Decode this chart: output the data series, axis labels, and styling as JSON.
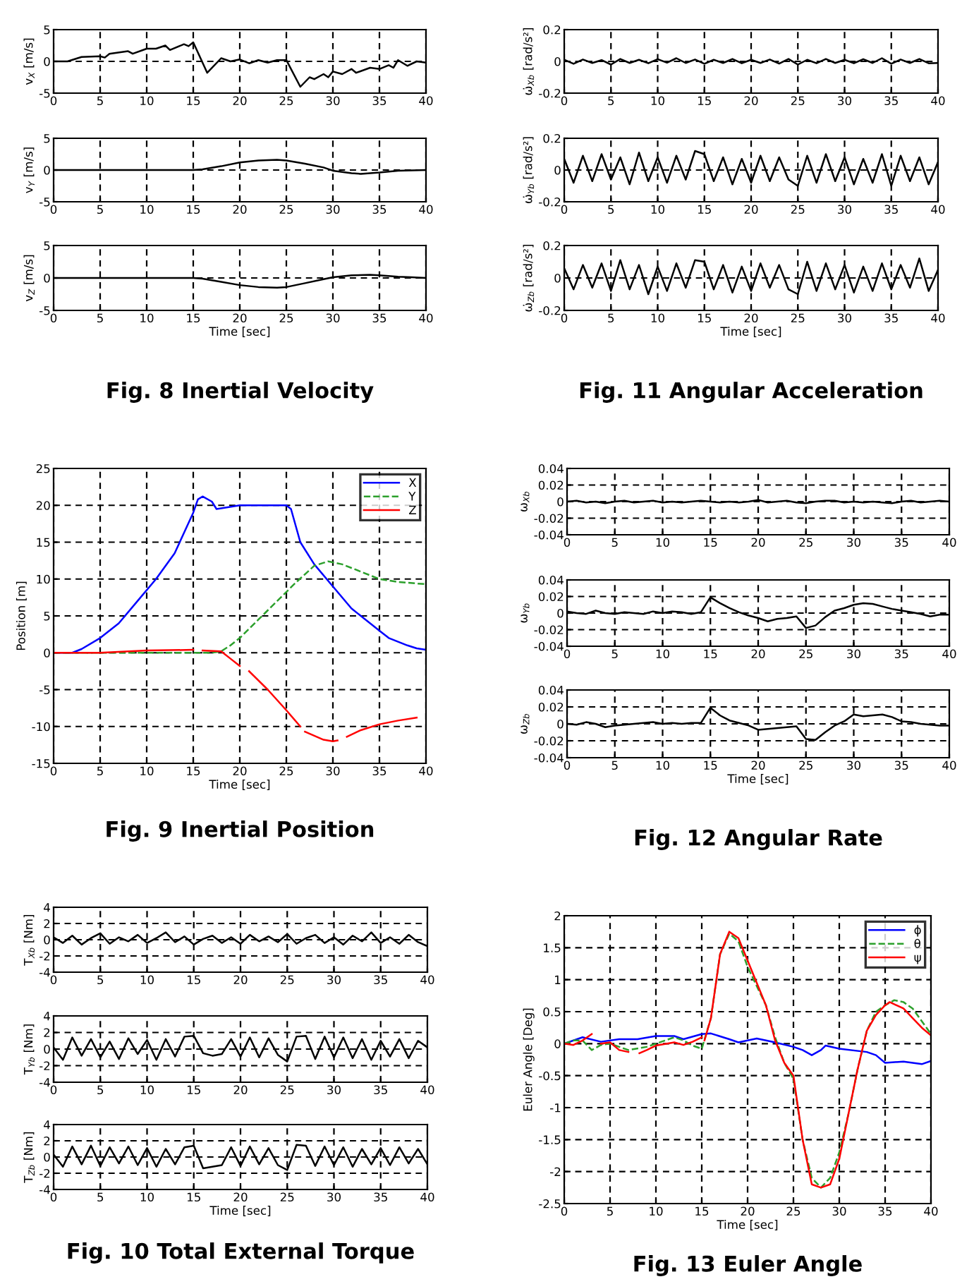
{
  "chart_data": [
    {
      "type": "line",
      "ylabel": "v$_{X}$ [m/s]",
      "xlim": [
        0,
        40
      ],
      "xticks": [
        0,
        5,
        10,
        15,
        20,
        25,
        30,
        35,
        40
      ],
      "ylim": [
        -5,
        5
      ],
      "yticks": [
        -5,
        0,
        5
      ],
      "grid": true,
      "series": [
        {
          "color": "#000000",
          "line_style": "solid",
          "x": [
            0,
            1.5,
            3,
            5,
            5.5,
            6,
            8,
            8.5,
            10,
            11,
            12,
            12.5,
            14,
            14.5,
            15,
            16.5,
            18,
            19,
            20,
            21,
            22,
            23,
            24,
            25,
            26.5,
            27.5,
            28,
            29,
            29.5,
            30,
            31,
            32,
            32.5,
            34,
            35,
            36,
            36.5,
            37,
            38,
            39,
            40
          ],
          "values": [
            0,
            0,
            0.7,
            0.8,
            0.6,
            1.2,
            1.6,
            1.2,
            2,
            2,
            2.5,
            1.8,
            2.7,
            2.4,
            3,
            -1.8,
            0.5,
            0,
            0.3,
            -0.3,
            0.2,
            -0.2,
            0.2,
            0.2,
            -4,
            -2.5,
            -2.8,
            -2,
            -2.5,
            -1.6,
            -2,
            -1.2,
            -1.8,
            -1,
            -1.2,
            -0.6,
            -1,
            0.2,
            -0.7,
            0,
            -0.2
          ]
        }
      ]
    },
    {
      "type": "line",
      "ylabel": "v$_{Y}$ [m/s]",
      "xlim": [
        0,
        40
      ],
      "xticks": [
        0,
        5,
        10,
        15,
        20,
        25,
        30,
        35,
        40
      ],
      "ylim": [
        -5,
        5
      ],
      "yticks": [
        -5,
        0,
        5
      ],
      "grid": true,
      "series": [
        {
          "color": "#000000",
          "line_style": "solid",
          "x": [
            0,
            5,
            10,
            15,
            16,
            18,
            20,
            22,
            24,
            25,
            27,
            29,
            30,
            32,
            33,
            35,
            37,
            40
          ],
          "values": [
            0,
            0,
            0,
            0,
            0.1,
            0.6,
            1.2,
            1.5,
            1.6,
            1.5,
            1,
            0.4,
            -0.1,
            -0.5,
            -0.6,
            -0.4,
            -0.1,
            0
          ]
        }
      ]
    },
    {
      "type": "line",
      "ylabel": "v$_{Z}$ [m/s]",
      "xlabel": "Time [sec]",
      "annotations": [
        "Fig. 8 Inertial Velocity"
      ],
      "xlim": [
        0,
        40
      ],
      "xticks": [
        0,
        5,
        10,
        15,
        20,
        25,
        30,
        35,
        40
      ],
      "ylim": [
        -5,
        5
      ],
      "yticks": [
        -5,
        0,
        5
      ],
      "grid": true,
      "series": [
        {
          "color": "#000000",
          "line_style": "solid",
          "x": [
            0,
            15,
            16,
            18,
            20,
            22,
            24,
            25,
            27,
            29,
            30,
            32,
            34,
            35,
            37,
            38.5,
            40
          ],
          "values": [
            0,
            0,
            -0.1,
            -0.6,
            -1.1,
            -1.4,
            -1.5,
            -1.4,
            -0.8,
            -0.2,
            0.1,
            0.4,
            0.5,
            0.4,
            0.2,
            0.1,
            0
          ]
        }
      ]
    },
    {
      "type": "line",
      "ylabel": "Position [m]",
      "xlabel": "Time [sec]",
      "annotations": [
        "Fig. 9 Inertial Position"
      ],
      "xlim": [
        0,
        40
      ],
      "xticks": [
        0,
        5,
        10,
        15,
        20,
        25,
        30,
        35,
        40
      ],
      "ylim": [
        -15,
        25
      ],
      "yticks": [
        -15,
        -10,
        -5,
        0,
        5,
        10,
        15,
        20,
        25
      ],
      "grid": true,
      "legend": "top right",
      "series": [
        {
          "name": "X",
          "color": "#0000ff",
          "line_style": "solid",
          "x": [
            0,
            2,
            3,
            5,
            7,
            9,
            11,
            13,
            15,
            15.5,
            16,
            17,
            17.5,
            18,
            20,
            22,
            24,
            25,
            25.5,
            26.5,
            28,
            30,
            32,
            34,
            35,
            36,
            37,
            38,
            39,
            40
          ],
          "values": [
            0,
            0,
            0.5,
            2,
            4,
            7,
            10,
            13.5,
            19,
            20.8,
            21.2,
            20.5,
            19.5,
            19.6,
            20,
            20,
            20,
            20,
            19.5,
            15,
            12,
            9,
            6,
            4,
            3,
            2,
            1.5,
            1,
            0.6,
            0.4
          ]
        },
        {
          "name": "Y",
          "color": "#2ca02c",
          "line_style": "dashed",
          "x": [
            0,
            10,
            15,
            17,
            18,
            19,
            20,
            22,
            24,
            26,
            28,
            29.5,
            31,
            33,
            35,
            37,
            40
          ],
          "values": [
            0,
            0,
            0,
            0,
            0.2,
            1,
            2,
            4.5,
            7,
            9.5,
            11.8,
            12.4,
            12,
            11,
            10,
            9.6,
            9.3
          ]
        },
        {
          "name": "Z",
          "color": "#ff0000",
          "line_style": "solid",
          "x": [
            0,
            5,
            10,
            15,
            15.5,
            16,
            18,
            19,
            20,
            20.5,
            21,
            23,
            25,
            26.5,
            26.8,
            27,
            29,
            30,
            30.5,
            31,
            31.5,
            33,
            35,
            37,
            39
          ],
          "values": [
            0,
            0,
            0.3,
            0.4,
            null,
            0.3,
            0.2,
            -0.8,
            -1.8,
            null,
            -2.5,
            -5,
            -7.8,
            -10,
            null,
            -10.7,
            -11.8,
            -12,
            -11.9,
            null,
            -11.4,
            -10.5,
            -9.7,
            -9.2,
            -8.8
          ]
        }
      ]
    },
    {
      "type": "line",
      "ylabel": "T$_{Xb}$ [Nm]",
      "xlim": [
        0,
        40
      ],
      "xticks": [
        0,
        5,
        10,
        15,
        20,
        25,
        30,
        35,
        40
      ],
      "ylim": [
        -4,
        4
      ],
      "yticks": [
        -4,
        -2,
        0,
        2,
        4
      ],
      "grid": true,
      "x": [
        0,
        1,
        2,
        3,
        4,
        5,
        6,
        7,
        8,
        9,
        10,
        11,
        12,
        13,
        14,
        15,
        16,
        17,
        18,
        19,
        20,
        21,
        22,
        23,
        24,
        25,
        26,
        27,
        28,
        29,
        30,
        31,
        32,
        33,
        34,
        35,
        36,
        37,
        38,
        39,
        40
      ],
      "series": [
        {
          "color": "#000000",
          "line_style": "solid",
          "values": [
            0.3,
            -0.4,
            0.5,
            -0.6,
            0.2,
            0.8,
            -0.5,
            0.3,
            -0.2,
            0.6,
            -0.4,
            0.2,
            0.9,
            -0.3,
            0.4,
            -0.6,
            0.1,
            0.5,
            -0.4,
            0.3,
            -0.5,
            0.6,
            -0.2,
            0.4,
            -0.3,
            0.7,
            -0.5,
            0.2,
            0.6,
            -0.4,
            0.3,
            -0.6,
            0.5,
            -0.2,
            0.9,
            -0.4,
            0.3,
            -0.5,
            0.6,
            -0.3,
            -0.8
          ]
        }
      ]
    },
    {
      "type": "line",
      "ylabel": "T$_{Yb}$ [Nm]",
      "xlim": [
        0,
        40
      ],
      "xticks": [
        0,
        5,
        10,
        15,
        20,
        25,
        30,
        35,
        40
      ],
      "ylim": [
        -4,
        4
      ],
      "yticks": [
        -4,
        -2,
        0,
        2,
        4
      ],
      "grid": true,
      "x": [
        0,
        1,
        2,
        3,
        4,
        5,
        6,
        7,
        8,
        9,
        10,
        11,
        12,
        13,
        14,
        15,
        16,
        17,
        18,
        19,
        20,
        21,
        22,
        23,
        24,
        25,
        26,
        27,
        28,
        29,
        30,
        31,
        32,
        33,
        34,
        35,
        36,
        37,
        38,
        39,
        40
      ],
      "series": [
        {
          "color": "#000000",
          "line_style": "solid",
          "values": [
            0.2,
            -1.3,
            1.4,
            -0.8,
            1.2,
            -1,
            0.9,
            -1.2,
            1.3,
            -0.6,
            1.1,
            -1.3,
            1.2,
            -0.9,
            1.5,
            1.6,
            -0.5,
            -0.8,
            -0.6,
            1.2,
            -0.9,
            1.4,
            -1,
            1.3,
            -0.7,
            -1.5,
            1.5,
            1.6,
            -1.2,
            1.5,
            -1,
            1.4,
            -1.1,
            1.2,
            -1.3,
            1,
            -0.9,
            1.2,
            -1.1,
            1,
            0.2
          ]
        }
      ]
    },
    {
      "type": "line",
      "ylabel": "T$_{Zb}$ [Nm]",
      "xlabel": "Time [sec]",
      "annotations": [
        "Fig. 10 Total External Torque"
      ],
      "xlim": [
        0,
        40
      ],
      "xticks": [
        0,
        5,
        10,
        15,
        20,
        25,
        30,
        35,
        40
      ],
      "ylim": [
        -4,
        4
      ],
      "yticks": [
        -4,
        -2,
        0,
        2,
        4
      ],
      "grid": true,
      "x": [
        0,
        1,
        2,
        3,
        4,
        5,
        6,
        7,
        8,
        9,
        10,
        11,
        12,
        13,
        14,
        15,
        16,
        17,
        18,
        19,
        20,
        21,
        22,
        23,
        24,
        25,
        26,
        27,
        28,
        29,
        30,
        31,
        32,
        33,
        34,
        35,
        36,
        37,
        38,
        39,
        40
      ],
      "series": [
        {
          "color": "#000000",
          "line_style": "solid",
          "values": [
            0.3,
            -1.2,
            1.3,
            -0.9,
            1.4,
            -1.1,
            1.2,
            -0.8,
            1.3,
            -1,
            1.1,
            -1.2,
            1,
            -0.9,
            1.2,
            1.4,
            -1.4,
            -1.2,
            -1,
            1.2,
            -1.1,
            1.3,
            -0.9,
            1.1,
            -1,
            -1.6,
            1.5,
            1.4,
            -1.1,
            1.3,
            -1,
            1.2,
            -1.2,
            1,
            -0.9,
            1.1,
            -1,
            1.2,
            -0.8,
            1,
            -0.9
          ]
        }
      ]
    },
    {
      "type": "line",
      "ylabel": "ω̇$_{Xb}$ [rad/s²]",
      "xlim": [
        0,
        40
      ],
      "xticks": [
        0,
        5,
        10,
        15,
        20,
        25,
        30,
        35,
        40
      ],
      "ylim": [
        -0.2,
        0.2
      ],
      "yticks": [
        -0.2,
        0,
        0.2
      ],
      "grid": true,
      "x": [
        0,
        1,
        2,
        3,
        4,
        5,
        6,
        7,
        8,
        9,
        10,
        11,
        12,
        13,
        14,
        15,
        16,
        17,
        18,
        19,
        20,
        21,
        22,
        23,
        24,
        25,
        26,
        27,
        28,
        29,
        30,
        31,
        32,
        33,
        34,
        35,
        36,
        37,
        38,
        39,
        40
      ],
      "series": [
        {
          "color": "#000000",
          "line_style": "solid",
          "values": [
            0.01,
            -0.015,
            0.012,
            -0.01,
            0.008,
            -0.02,
            0.015,
            -0.01,
            0.01,
            -0.012,
            0.014,
            -0.008,
            0.02,
            -0.01,
            0.012,
            -0.015,
            0.01,
            -0.01,
            0.015,
            -0.012,
            0.01,
            -0.01,
            0.012,
            -0.014,
            0.015,
            -0.02,
            0.01,
            -0.012,
            0.015,
            -0.01,
            0.01,
            -0.012,
            0.014,
            -0.01,
            0.02,
            -0.015,
            0.012,
            -0.01,
            0.015,
            -0.012,
            -0.01
          ]
        }
      ]
    },
    {
      "type": "line",
      "ylabel": "ω̇$_{Yb}$ [rad/s²]",
      "xlim": [
        0,
        40
      ],
      "xticks": [
        0,
        5,
        10,
        15,
        20,
        25,
        30,
        35,
        40
      ],
      "ylim": [
        -0.2,
        0.2
      ],
      "yticks": [
        -0.2,
        0,
        0.2
      ],
      "grid": true,
      "x": [
        0,
        1,
        2,
        3,
        4,
        5,
        6,
        7,
        8,
        9,
        10,
        11,
        12,
        13,
        14,
        15,
        16,
        17,
        18,
        19,
        20,
        21,
        22,
        23,
        24,
        25,
        26,
        27,
        28,
        29,
        30,
        31,
        32,
        33,
        34,
        35,
        36,
        37,
        38,
        39,
        40
      ],
      "series": [
        {
          "color": "#000000",
          "line_style": "solid",
          "values": [
            0.07,
            -0.08,
            0.09,
            -0.07,
            0.1,
            -0.06,
            0.08,
            -0.09,
            0.11,
            -0.07,
            0.08,
            -0.08,
            0.09,
            -0.06,
            0.12,
            0.1,
            -0.07,
            0.08,
            -0.09,
            0.07,
            -0.08,
            0.09,
            -0.07,
            0.08,
            -0.06,
            -0.1,
            0.09,
            -0.08,
            0.1,
            -0.07,
            0.08,
            -0.09,
            0.07,
            -0.08,
            0.1,
            -0.1,
            0.09,
            -0.07,
            0.08,
            -0.09,
            0.05
          ]
        }
      ]
    },
    {
      "type": "line",
      "ylabel": "ω̇$_{Zb}$ [rad/s²]",
      "xlabel": "Time [sec]",
      "annotations": [
        "Fig. 11 Angular Acceleration"
      ],
      "xlim": [
        0,
        40
      ],
      "xticks": [
        0,
        5,
        10,
        15,
        20,
        25,
        30,
        35,
        40
      ],
      "ylim": [
        -0.2,
        0.2
      ],
      "yticks": [
        -0.2,
        0,
        0.2
      ],
      "grid": true,
      "x": [
        0,
        1,
        2,
        3,
        4,
        5,
        6,
        7,
        8,
        9,
        10,
        11,
        12,
        13,
        14,
        15,
        16,
        17,
        18,
        19,
        20,
        21,
        22,
        23,
        24,
        25,
        26,
        27,
        28,
        29,
        30,
        31,
        32,
        33,
        34,
        35,
        36,
        37,
        38,
        39,
        40
      ],
      "series": [
        {
          "color": "#000000",
          "line_style": "solid",
          "values": [
            0.06,
            -0.07,
            0.08,
            -0.06,
            0.09,
            -0.08,
            0.11,
            -0.07,
            0.08,
            -0.1,
            0.07,
            -0.08,
            0.09,
            -0.06,
            0.11,
            0.1,
            -0.07,
            0.08,
            -0.09,
            0.07,
            -0.08,
            0.09,
            -0.06,
            0.08,
            -0.07,
            -0.1,
            0.1,
            -0.08,
            0.09,
            -0.07,
            0.08,
            -0.09,
            0.07,
            -0.08,
            0.09,
            -0.07,
            0.08,
            -0.06,
            0.12,
            -0.08,
            0.05
          ]
        }
      ]
    },
    {
      "type": "line",
      "ylabel": "ω$_{Xb}$",
      "xlim": [
        0,
        40
      ],
      "xticks": [
        0,
        5,
        10,
        15,
        20,
        25,
        30,
        35,
        40
      ],
      "ylim": [
        -0.04,
        0.04
      ],
      "yticks": [
        -0.04,
        -0.02,
        0,
        0.02,
        0.04
      ],
      "grid": true,
      "x": [
        0,
        1,
        2,
        3,
        4,
        5,
        6,
        7,
        8,
        9,
        10,
        11,
        12,
        13,
        14,
        15,
        16,
        17,
        18,
        19,
        20,
        21,
        22,
        23,
        24,
        25,
        26,
        27,
        28,
        29,
        30,
        31,
        32,
        33,
        34,
        35,
        36,
        37,
        38,
        39,
        40
      ],
      "series": [
        {
          "color": "#000000",
          "line_style": "solid",
          "values": [
            0,
            0.001,
            -0.001,
            0,
            -0.002,
            0,
            0.001,
            -0.001,
            0,
            0.001,
            -0.001,
            0,
            -0.001,
            0,
            0.001,
            0,
            -0.001,
            0,
            -0.001,
            0,
            0.002,
            -0.001,
            0,
            0.001,
            -0.001,
            -0.002,
            0,
            0.001,
            0.001,
            -0.001,
            0,
            -0.001,
            0,
            -0.001,
            -0.002,
            0,
            0.001,
            -0.001,
            0,
            0.001,
            0
          ]
        }
      ]
    },
    {
      "type": "line",
      "ylabel": "ω$_{Yb}$",
      "xlim": [
        0,
        40
      ],
      "xticks": [
        0,
        5,
        10,
        15,
        20,
        25,
        30,
        35,
        40
      ],
      "ylim": [
        -0.04,
        0.04
      ],
      "yticks": [
        -0.04,
        -0.02,
        0,
        0.02,
        0.04
      ],
      "grid": true,
      "x": [
        0,
        1,
        2,
        3,
        4,
        5,
        6,
        7,
        8,
        9,
        10,
        11,
        12,
        13,
        14,
        15,
        16,
        17,
        18,
        19,
        20,
        21,
        22,
        23,
        24,
        25,
        26,
        27,
        28,
        29,
        30,
        31,
        32,
        33,
        34,
        35,
        36,
        37,
        38,
        39,
        40
      ],
      "series": [
        {
          "color": "#000000",
          "line_style": "solid",
          "values": [
            0.002,
            0,
            -0.001,
            0.003,
            0,
            -0.001,
            0.001,
            0,
            -0.001,
            0.002,
            0,
            0.002,
            0.001,
            -0.001,
            0.001,
            0.019,
            0.012,
            0.006,
            0.001,
            -0.003,
            -0.006,
            -0.01,
            -0.007,
            -0.006,
            -0.004,
            -0.018,
            -0.015,
            -0.005,
            0.003,
            0.006,
            0.01,
            0.012,
            0.011,
            0.008,
            0.005,
            0.003,
            0.001,
            -0.001,
            -0.004,
            -0.002,
            -0.002
          ]
        }
      ]
    },
    {
      "type": "line",
      "ylabel": "ω$_{Zb}$",
      "xlabel": "Time [sec]",
      "annotations": [
        "Fig. 12 Angular Rate"
      ],
      "xlim": [
        0,
        40
      ],
      "xticks": [
        0,
        5,
        10,
        15,
        20,
        25,
        30,
        35,
        40
      ],
      "ylim": [
        -0.04,
        0.04
      ],
      "yticks": [
        -0.04,
        -0.02,
        0,
        0.02,
        0.04
      ],
      "grid": true,
      "x": [
        0,
        1,
        2,
        3,
        4,
        5,
        6,
        7,
        8,
        9,
        10,
        11,
        12,
        13,
        14,
        15,
        16,
        17,
        18,
        19,
        20,
        21,
        22,
        23,
        24,
        25,
        26,
        27,
        28,
        29,
        30,
        31,
        32,
        33,
        34,
        35,
        36,
        37,
        38,
        39,
        40
      ],
      "series": [
        {
          "color": "#000000",
          "line_style": "solid",
          "values": [
            0,
            -0.001,
            0.002,
            0,
            -0.004,
            -0.002,
            -0.001,
            0,
            0.001,
            0.002,
            0,
            0.001,
            0,
            0.001,
            0.001,
            0.019,
            0.01,
            0.004,
            0.001,
            -0.002,
            -0.007,
            -0.006,
            -0.005,
            -0.004,
            -0.003,
            -0.018,
            -0.019,
            -0.01,
            -0.002,
            0.003,
            0.011,
            0.009,
            0.01,
            0.011,
            0.008,
            0.003,
            0.002,
            0,
            -0.001,
            -0.002,
            -0.002
          ]
        }
      ]
    },
    {
      "type": "line",
      "ylabel": "Euler Angle [Deg]",
      "xlabel": "Time [sec]",
      "annotations": [
        "Fig. 13 Euler Angle"
      ],
      "xlim": [
        0,
        40
      ],
      "xticks": [
        0,
        5,
        10,
        15,
        20,
        25,
        30,
        35,
        40
      ],
      "ylim": [
        -2.5,
        2
      ],
      "yticks": [
        -2.5,
        -2,
        -1.5,
        -1,
        -0.5,
        0,
        0.5,
        1,
        1.5,
        2
      ],
      "grid": true,
      "legend": "top right",
      "series": [
        {
          "name": "ϕ",
          "color": "#0000ff",
          "line_style": "solid",
          "x": [
            0,
            2,
            4,
            6,
            8,
            10,
            12,
            13,
            15,
            16,
            18,
            19,
            21,
            23,
            25,
            26,
            27,
            28,
            28.5,
            30,
            33,
            34,
            35,
            37,
            38,
            39,
            40
          ],
          "values": [
            0,
            0.1,
            0.03,
            0.07,
            0.07,
            0.12,
            0.12,
            0.07,
            0.15,
            0.16,
            0.07,
            0.02,
            0.08,
            0.02,
            -0.05,
            -0.1,
            -0.18,
            -0.1,
            -0.03,
            -0.08,
            -0.13,
            -0.18,
            -0.3,
            -0.28,
            -0.3,
            -0.32,
            -0.27
          ]
        },
        {
          "name": "θ",
          "color": "#2ca02c",
          "line_style": "dashed",
          "x": [
            0,
            1,
            2,
            3,
            4,
            5,
            6,
            7,
            9,
            10,
            12,
            13,
            14,
            15,
            16,
            17,
            18,
            19,
            20,
            22,
            23,
            24,
            25,
            26,
            27,
            28,
            29,
            30,
            31,
            32,
            33,
            34,
            35,
            36,
            37,
            38,
            39,
            40
          ],
          "values": [
            0,
            0.05,
            0.05,
            -0.1,
            -0.02,
            0,
            -0.05,
            -0.1,
            -0.05,
            0,
            0.1,
            0.05,
            -0.03,
            -0.08,
            0.4,
            1.4,
            1.72,
            1.6,
            1.2,
            0.6,
            0.1,
            -0.3,
            -0.55,
            -1.5,
            -2.1,
            -2.25,
            -2.1,
            -1.7,
            -1.1,
            -0.4,
            0.2,
            0.5,
            0.6,
            0.68,
            0.65,
            0.55,
            0.35,
            0.15
          ]
        },
        {
          "name": "ψ",
          "color": "#ff0000",
          "line_style": "solid",
          "x": [
            0,
            1,
            2,
            3,
            3.1,
            4,
            5,
            6,
            7,
            8,
            8.2,
            9,
            10,
            12,
            13,
            14,
            15,
            15.1,
            15.3,
            16,
            17,
            18,
            19,
            20,
            22,
            23,
            24,
            25,
            26,
            27,
            28,
            29,
            30,
            31,
            32,
            33,
            34,
            35,
            35.5,
            37,
            38,
            39,
            40
          ],
          "values": [
            0,
            -0.02,
            0.05,
            0.15,
            null,
            0,
            0.02,
            -0.1,
            -0.13,
            null,
            -0.15,
            -0.1,
            -0.03,
            0.02,
            -0.02,
            0.03,
            0.1,
            null,
            0.05,
            0.4,
            1.4,
            1.75,
            1.65,
            1.3,
            0.6,
            0.05,
            -0.3,
            -0.5,
            -1.5,
            -2.2,
            -2.25,
            -2.2,
            -1.8,
            -1.1,
            -0.4,
            0.2,
            0.45,
            0.6,
            0.65,
            0.55,
            0.4,
            0.25,
            0.13
          ]
        }
      ]
    }
  ]
}
